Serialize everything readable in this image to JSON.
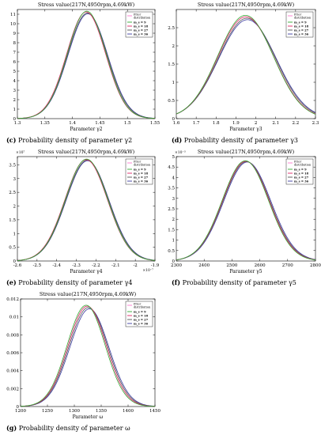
{
  "colors": {
    "prior": "#ff66cc",
    "m9": "#33aa33",
    "m18": "#dd2266",
    "m27": "#555555",
    "m36": "#3a3aa0"
  },
  "chart_data": [
    {
      "panel": "c",
      "type": "line",
      "title": "Stress value(217N,4950rpm,4.69kW)",
      "xlabel": "Parameter γ2",
      "caption_letter": "(c)",
      "caption_text": "Probability density of parameter γ2",
      "xlim": [
        1.3,
        1.55
      ],
      "ylim": [
        0,
        11.5
      ],
      "xticks": [
        1.3,
        1.35,
        1.4,
        1.45,
        1.5,
        1.55
      ],
      "yticks": [
        0,
        1,
        2,
        3,
        4,
        5,
        6,
        7,
        8,
        9,
        10,
        11
      ],
      "xtick_labels": [
        "1.3",
        "1.35",
        "1.4",
        "1.45",
        "1.5",
        "1.55"
      ],
      "ytick_labels": [
        "0",
        "1",
        "2",
        "3",
        "4",
        "5",
        "6",
        "7",
        "8",
        "9",
        "10",
        "11"
      ],
      "y_exponent": "",
      "x_exponent": "",
      "legend_title": "Prior distribution",
      "series": [
        {
          "name": "m_s = 9",
          "mean": 1.426,
          "std": 0.0352,
          "peak": 11.32,
          "color": "#33aa33"
        },
        {
          "name": "m_s = 18",
          "mean": 1.425,
          "std": 0.0354,
          "peak": 11.25,
          "color": "#dd2266"
        },
        {
          "name": "m_s = 27",
          "mean": 1.427,
          "std": 0.0358,
          "peak": 11.12,
          "color": "#555555"
        },
        {
          "name": "m_s = 36",
          "mean": 1.428,
          "std": 0.036,
          "peak": 11.05,
          "color": "#3a3aa0"
        }
      ]
    },
    {
      "panel": "d",
      "type": "line",
      "title": "Stress value(217N,4950rpm,4.69kW)",
      "xlabel": "Parameter γ3",
      "caption_letter": "(d)",
      "caption_text": "Probability density of parameter γ3",
      "xlim": [
        1.6,
        2.3
      ],
      "ylim": [
        0,
        3.0
      ],
      "xticks": [
        1.6,
        1.7,
        1.8,
        1.9,
        2.0,
        2.1,
        2.2,
        2.3
      ],
      "yticks": [
        0,
        0.5,
        1,
        1.5,
        2,
        2.5
      ],
      "xtick_labels": [
        "1.6",
        "1.7",
        "1.8",
        "1.9",
        "2",
        "2.1",
        "2.2",
        "2.3"
      ],
      "ytick_labels": [
        "0",
        "0.5",
        "1",
        "1.5",
        "2",
        "2.5"
      ],
      "y_exponent": "",
      "x_exponent": "",
      "legend_title": "Prior distribution",
      "series": [
        {
          "name": "m_s = 9",
          "mean": 1.948,
          "std": 0.14,
          "peak": 2.84,
          "color": "#33aa33"
        },
        {
          "name": "m_s = 18",
          "mean": 1.95,
          "std": 0.141,
          "peak": 2.8,
          "color": "#dd2266"
        },
        {
          "name": "m_s = 27",
          "mean": 1.955,
          "std": 0.143,
          "peak": 2.76,
          "color": "#555555"
        },
        {
          "name": "m_s = 36",
          "mean": 1.958,
          "std": 0.145,
          "peak": 2.72,
          "color": "#3a3aa0"
        }
      ]
    },
    {
      "panel": "e",
      "type": "line",
      "title": "Stress value(217N,4950rpm,4.69kW)",
      "xlabel": "Parameter γ4",
      "caption_letter": "(e)",
      "caption_text": "Probability density of parameter γ4",
      "xlim": [
        -2.6,
        -1.9
      ],
      "ylim": [
        0,
        3.8
      ],
      "xticks": [
        -2.6,
        -2.5,
        -2.4,
        -2.3,
        -2.2,
        -2.1,
        -2.0,
        -1.9
      ],
      "yticks": [
        0,
        0.5,
        1,
        1.5,
        2,
        2.5,
        3,
        3.5
      ],
      "xtick_labels": [
        "-2.6",
        "-2.5",
        "-2.4",
        "-2.3",
        "-2.2",
        "-2.1",
        "-2",
        "-1.9"
      ],
      "ytick_labels": [
        "0",
        "0.5",
        "1",
        "1.5",
        "2",
        "2.5",
        "3",
        "3.5"
      ],
      "y_exponent": "×10⁷",
      "x_exponent": "×10⁻⁷",
      "legend_title": "Prior distribution",
      "series": [
        {
          "name": "m_s = 9",
          "mean": -2.248,
          "std": 0.1075,
          "peak": 3.71,
          "color": "#33aa33"
        },
        {
          "name": "m_s = 18",
          "mean": -2.25,
          "std": 0.108,
          "peak": 3.69,
          "color": "#dd2266"
        },
        {
          "name": "m_s = 27",
          "mean": -2.245,
          "std": 0.1085,
          "peak": 3.67,
          "color": "#555555"
        },
        {
          "name": "m_s = 36",
          "mean": -2.243,
          "std": 0.109,
          "peak": 3.65,
          "color": "#3a3aa0"
        }
      ]
    },
    {
      "panel": "f",
      "type": "line",
      "title": "Stress value(217N,4950rpm,4.69kW)",
      "xlabel": "Parameter γ5",
      "caption_letter": "(f)",
      "caption_text": "Probability density of parameter γ5",
      "xlim": [
        2300,
        2800
      ],
      "ylim": [
        0,
        5.0
      ],
      "xticks": [
        2300,
        2400,
        2500,
        2600,
        2700,
        2800
      ],
      "yticks": [
        0,
        0.5,
        1,
        1.5,
        2,
        2.5,
        3,
        3.5,
        4,
        4.5,
        5
      ],
      "xtick_labels": [
        "2300",
        "2400",
        "2500",
        "2600",
        "2700",
        "2800"
      ],
      "ytick_labels": [
        "0",
        "0.5",
        "1",
        "1.5",
        "2",
        "2.5",
        "3",
        "3.5",
        "4",
        "4.5",
        "5"
      ],
      "y_exponent": "×10⁻³",
      "x_exponent": "",
      "legend_title": "Prior distribution",
      "series": [
        {
          "name": "m_s = 9",
          "mean": 2548,
          "std": 83,
          "peak": 4.8,
          "color": "#33aa33"
        },
        {
          "name": "m_s = 18",
          "mean": 2550,
          "std": 83.5,
          "peak": 4.78,
          "color": "#dd2266"
        },
        {
          "name": "m_s = 27",
          "mean": 2552,
          "std": 84,
          "peak": 4.76,
          "color": "#555555"
        },
        {
          "name": "m_s = 36",
          "mean": 2555,
          "std": 84.5,
          "peak": 4.74,
          "color": "#3a3aa0"
        }
      ]
    },
    {
      "panel": "g",
      "type": "line",
      "title": "Stress value(217N,4950rpm,4.69kW)",
      "xlabel": "Parameter ω",
      "caption_letter": "(g)",
      "caption_text": "Probability density of parameter ω",
      "xlim": [
        1200,
        1450
      ],
      "ylim": [
        0,
        0.012
      ],
      "xticks": [
        1200,
        1250,
        1300,
        1350,
        1400,
        1450
      ],
      "yticks": [
        0,
        0.002,
        0.004,
        0.006,
        0.008,
        0.01,
        0.012
      ],
      "xtick_labels": [
        "1200",
        "1250",
        "1300",
        "1350",
        "1400",
        "1450"
      ],
      "ytick_labels": [
        "0",
        "0.002",
        "0.004",
        "0.006",
        "0.008",
        "0.01",
        "0.012"
      ],
      "y_exponent": "",
      "x_exponent": "",
      "legend_title": "Prior distribution",
      "series": [
        {
          "name": "m_s = 9",
          "mean": 1322,
          "std": 35.3,
          "peak": 0.0113,
          "color": "#33aa33"
        },
        {
          "name": "m_s = 18",
          "mean": 1324,
          "std": 35.6,
          "peak": 0.0112,
          "color": "#dd2266"
        },
        {
          "name": "m_s = 27",
          "mean": 1326,
          "std": 36.0,
          "peak": 0.01105,
          "color": "#555555"
        },
        {
          "name": "m_s = 36",
          "mean": 1328,
          "std": 36.3,
          "peak": 0.0109,
          "color": "#3a3aa0"
        }
      ]
    }
  ]
}
